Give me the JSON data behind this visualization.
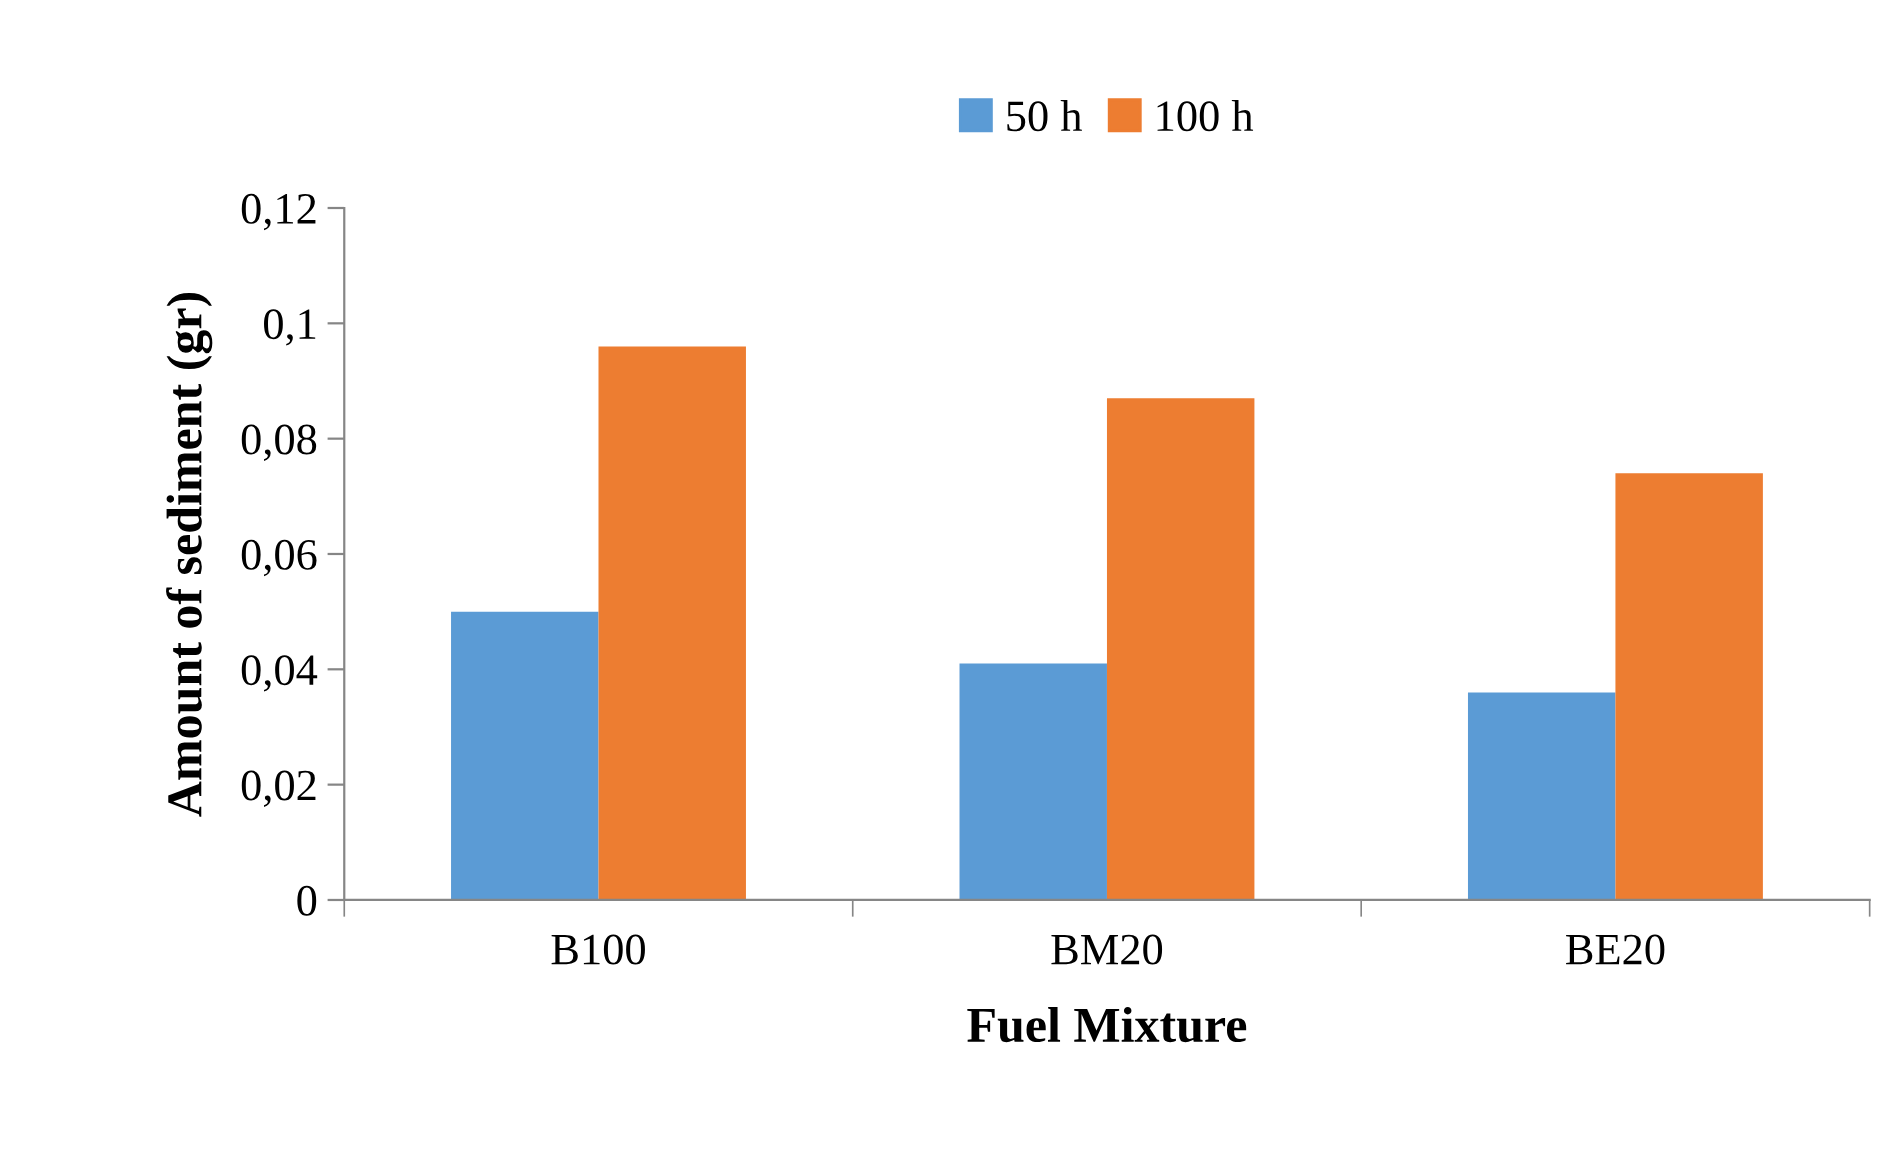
{
  "chart_data": {
    "type": "bar",
    "xlabel": "Fuel Mixture",
    "ylabel": "Amount of sediment (gr)",
    "categories": [
      "B100",
      "BM20",
      "BE20"
    ],
    "series": [
      {
        "name": "50 h",
        "color": "#5b9bd5",
        "values": [
          0.05,
          0.041,
          0.036
        ]
      },
      {
        "name": "100 h",
        "color": "#ed7d31",
        "values": [
          0.096,
          0.087,
          0.074
        ]
      }
    ],
    "ylim": [
      0,
      0.12
    ],
    "yticks": [
      0,
      {
        "value": 0.02,
        "label": "0,02"
      },
      {
        "value": 0.04,
        "label": "0,04"
      },
      {
        "value": 0.06,
        "label": "0,06"
      },
      {
        "value": 0.08,
        "label": "0,08"
      },
      {
        "value": 0.1,
        "label": "0,1"
      },
      {
        "value": 0.12,
        "label": "0,12"
      }
    ],
    "grid": false,
    "legend": "top"
  }
}
